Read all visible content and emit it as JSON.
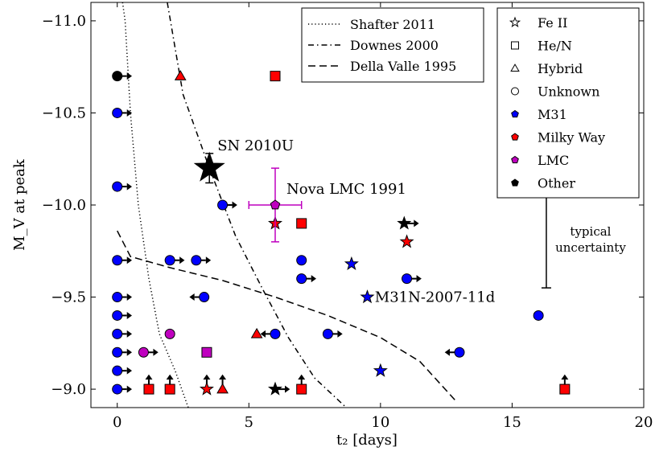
{
  "chart_data": {
    "type": "scatter",
    "xlabel": "t₂ [days]",
    "ylabel": "M_V at peak",
    "xlim": [
      -1,
      20
    ],
    "ylim": [
      -8.9,
      -11.1
    ],
    "y_inverted": true,
    "xticks": [
      0,
      5,
      10,
      15,
      20
    ],
    "xtick_labels": [
      "0",
      "5",
      "10",
      "15",
      "20"
    ],
    "yticks": [
      -11.0,
      -10.5,
      -10.0,
      -9.5,
      -9.0
    ],
    "ytick_labels": [
      "−11.0",
      "−10.5",
      "−10.0",
      "−9.5",
      "−9.0"
    ],
    "grid": false,
    "colors": {
      "m31": "#0000ff",
      "milky_way": "#ff0000",
      "lmc": "#bf00bf",
      "other": "#000000",
      "lmc_errorbar": "#bf00bf"
    },
    "legend_lines": {
      "position": "top-center",
      "entries": [
        {
          "label": "Shafter 2011",
          "style": "dotted"
        },
        {
          "label": "Downes 2000",
          "style": "dashdot"
        },
        {
          "label": "Della Valle 1995",
          "style": "dashed"
        }
      ]
    },
    "legend_markers": {
      "position": "top-right",
      "entries": [
        {
          "label": "Fe II",
          "shape": "star",
          "fill": "none"
        },
        {
          "label": "He/N",
          "shape": "square",
          "fill": "none"
        },
        {
          "label": "Hybrid",
          "shape": "triangle",
          "fill": "none"
        },
        {
          "label": "Unknown",
          "shape": "circle",
          "fill": "none"
        },
        {
          "label": "M31",
          "shape": "pentagon",
          "fill": "#0000ff"
        },
        {
          "label": "Milky Way",
          "shape": "pentagon",
          "fill": "#ff0000"
        },
        {
          "label": "LMC",
          "shape": "pentagon",
          "fill": "#bf00bf"
        },
        {
          "label": "Other",
          "shape": "pentagon",
          "fill": "#000000"
        }
      ]
    },
    "curves": [
      {
        "name": "Shafter 2011",
        "style": "dotted",
        "points": [
          [
            0.2,
            -11.1
          ],
          [
            0.3,
            -11.0
          ],
          [
            0.5,
            -10.5
          ],
          [
            0.8,
            -10.0
          ],
          [
            1.2,
            -9.6
          ],
          [
            1.6,
            -9.3
          ],
          [
            2.2,
            -9.1
          ],
          [
            2.7,
            -8.9
          ]
        ]
      },
      {
        "name": "Downes 2000",
        "style": "dashdot",
        "points": [
          [
            1.9,
            -11.1
          ],
          [
            2.5,
            -10.6
          ],
          [
            3.5,
            -10.2
          ],
          [
            4.5,
            -9.83
          ],
          [
            5.5,
            -9.55
          ],
          [
            6.5,
            -9.28
          ],
          [
            7.5,
            -9.06
          ],
          [
            8.7,
            -8.9
          ]
        ]
      },
      {
        "name": "Della Valle 1995",
        "style": "dashed",
        "points": [
          [
            0,
            -9.86
          ],
          [
            0.5,
            -9.72
          ],
          [
            2,
            -9.66
          ],
          [
            4,
            -9.59
          ],
          [
            6,
            -9.5
          ],
          [
            8,
            -9.4
          ],
          [
            10,
            -9.28
          ],
          [
            11.5,
            -9.15
          ],
          [
            12.9,
            -8.93
          ]
        ]
      }
    ],
    "points": [
      {
        "x": 0,
        "y": -10.7,
        "shape": "circle",
        "color": "other",
        "limit": "right"
      },
      {
        "x": 0,
        "y": -10.5,
        "shape": "circle",
        "color": "m31",
        "limit": "right"
      },
      {
        "x": 0,
        "y": -10.1,
        "shape": "circle",
        "color": "m31",
        "limit": "right"
      },
      {
        "x": 0,
        "y": -9.7,
        "shape": "circle",
        "color": "m31",
        "limit": "right"
      },
      {
        "x": 0,
        "y": -9.5,
        "shape": "circle",
        "color": "m31",
        "limit": "right"
      },
      {
        "x": 0,
        "y": -9.4,
        "shape": "circle",
        "color": "m31",
        "limit": "right"
      },
      {
        "x": 0,
        "y": -9.3,
        "shape": "circle",
        "color": "m31",
        "limit": "right"
      },
      {
        "x": 0,
        "y": -9.2,
        "shape": "circle",
        "color": "m31",
        "limit": "right"
      },
      {
        "x": 0,
        "y": -9.1,
        "shape": "circle",
        "color": "m31",
        "limit": "right"
      },
      {
        "x": 0,
        "y": -9.0,
        "shape": "circle",
        "color": "m31",
        "limit": "right"
      },
      {
        "x": 1,
        "y": -9.2,
        "shape": "circle",
        "color": "lmc",
        "limit": "right"
      },
      {
        "x": 1.2,
        "y": -9.0,
        "shape": "square",
        "color": "milky_way",
        "limit": "up"
      },
      {
        "x": 2,
        "y": -9.0,
        "shape": "square",
        "color": "milky_way",
        "limit": "up"
      },
      {
        "x": 2,
        "y": -9.3,
        "shape": "circle",
        "color": "lmc",
        "limit": "none"
      },
      {
        "x": 2,
        "y": -9.7,
        "shape": "circle",
        "color": "m31",
        "limit": "right"
      },
      {
        "x": 2.4,
        "y": -10.7,
        "shape": "triangle",
        "color": "milky_way",
        "limit": "none"
      },
      {
        "x": 3,
        "y": -9.7,
        "shape": "circle",
        "color": "m31",
        "limit": "right"
      },
      {
        "x": 3.3,
        "y": -9.5,
        "shape": "circle",
        "color": "m31",
        "limit": "left"
      },
      {
        "x": 3.4,
        "y": -9.2,
        "shape": "square",
        "color": "lmc",
        "limit": "none"
      },
      {
        "x": 3.4,
        "y": -9.0,
        "shape": "star",
        "color": "milky_way",
        "limit": "up"
      },
      {
        "x": 4,
        "y": -9.0,
        "shape": "triangle",
        "color": "milky_way",
        "limit": "up"
      },
      {
        "x": 4,
        "y": -10.0,
        "shape": "circle",
        "color": "m31",
        "limit": "right"
      },
      {
        "x": 5.3,
        "y": -9.3,
        "shape": "triangle",
        "color": "milky_way",
        "limit": "none"
      },
      {
        "x": 6,
        "y": -9.3,
        "shape": "circle",
        "color": "m31",
        "limit": "left"
      },
      {
        "x": 6,
        "y": -9.9,
        "shape": "star",
        "color": "milky_way",
        "limit": "none"
      },
      {
        "x": 6,
        "y": -10.7,
        "shape": "square",
        "color": "milky_way",
        "limit": "none"
      },
      {
        "x": 6,
        "y": -9.0,
        "shape": "star",
        "color": "other",
        "limit": "right"
      },
      {
        "x": 7,
        "y": -9.9,
        "shape": "square",
        "color": "milky_way",
        "limit": "none"
      },
      {
        "x": 7,
        "y": -9.7,
        "shape": "circle",
        "color": "m31",
        "limit": "none"
      },
      {
        "x": 7,
        "y": -9.6,
        "shape": "circle",
        "color": "m31",
        "limit": "right"
      },
      {
        "x": 7,
        "y": -9.0,
        "shape": "square",
        "color": "milky_way",
        "limit": "up"
      },
      {
        "x": 8,
        "y": -9.3,
        "shape": "circle",
        "color": "m31",
        "limit": "right"
      },
      {
        "x": 8.9,
        "y": -9.68,
        "shape": "star",
        "color": "m31",
        "limit": "none"
      },
      {
        "x": 9.5,
        "y": -9.5,
        "shape": "star",
        "color": "m31",
        "limit": "none"
      },
      {
        "x": 10,
        "y": -9.1,
        "shape": "star",
        "color": "m31",
        "limit": "none"
      },
      {
        "x": 10.9,
        "y": -9.9,
        "shape": "star",
        "color": "other",
        "limit": "right"
      },
      {
        "x": 11,
        "y": -9.8,
        "shape": "star",
        "color": "milky_way",
        "limit": "none"
      },
      {
        "x": 11,
        "y": -9.6,
        "shape": "circle",
        "color": "m31",
        "limit": "right"
      },
      {
        "x": 13,
        "y": -9.2,
        "shape": "circle",
        "color": "m31",
        "limit": "left"
      },
      {
        "x": 16,
        "y": -9.4,
        "shape": "circle",
        "color": "m31",
        "limit": "none"
      },
      {
        "x": 17,
        "y": -9.0,
        "shape": "square",
        "color": "milky_way",
        "limit": "up"
      }
    ],
    "featured": [
      {
        "x": 3.5,
        "y": -10.2,
        "shape": "big-star",
        "color": "other",
        "yerr": 0.08,
        "label": "SN 2010U"
      },
      {
        "x": 6.0,
        "y": -10.0,
        "shape": "pentagon",
        "color": "lmc",
        "xerr": [
          1.0,
          1.0
        ],
        "yerr": 0.2,
        "label": "Nova LMC 1991"
      }
    ],
    "annotations": [
      {
        "text": "M31N-2007-11d",
        "x": 9.6,
        "y": -9.5
      }
    ],
    "typical_uncertainty": {
      "x": 16.3,
      "y_low": -9.55,
      "y_high": -10.05,
      "label_lines": [
        "typical",
        "uncertainty"
      ]
    }
  }
}
